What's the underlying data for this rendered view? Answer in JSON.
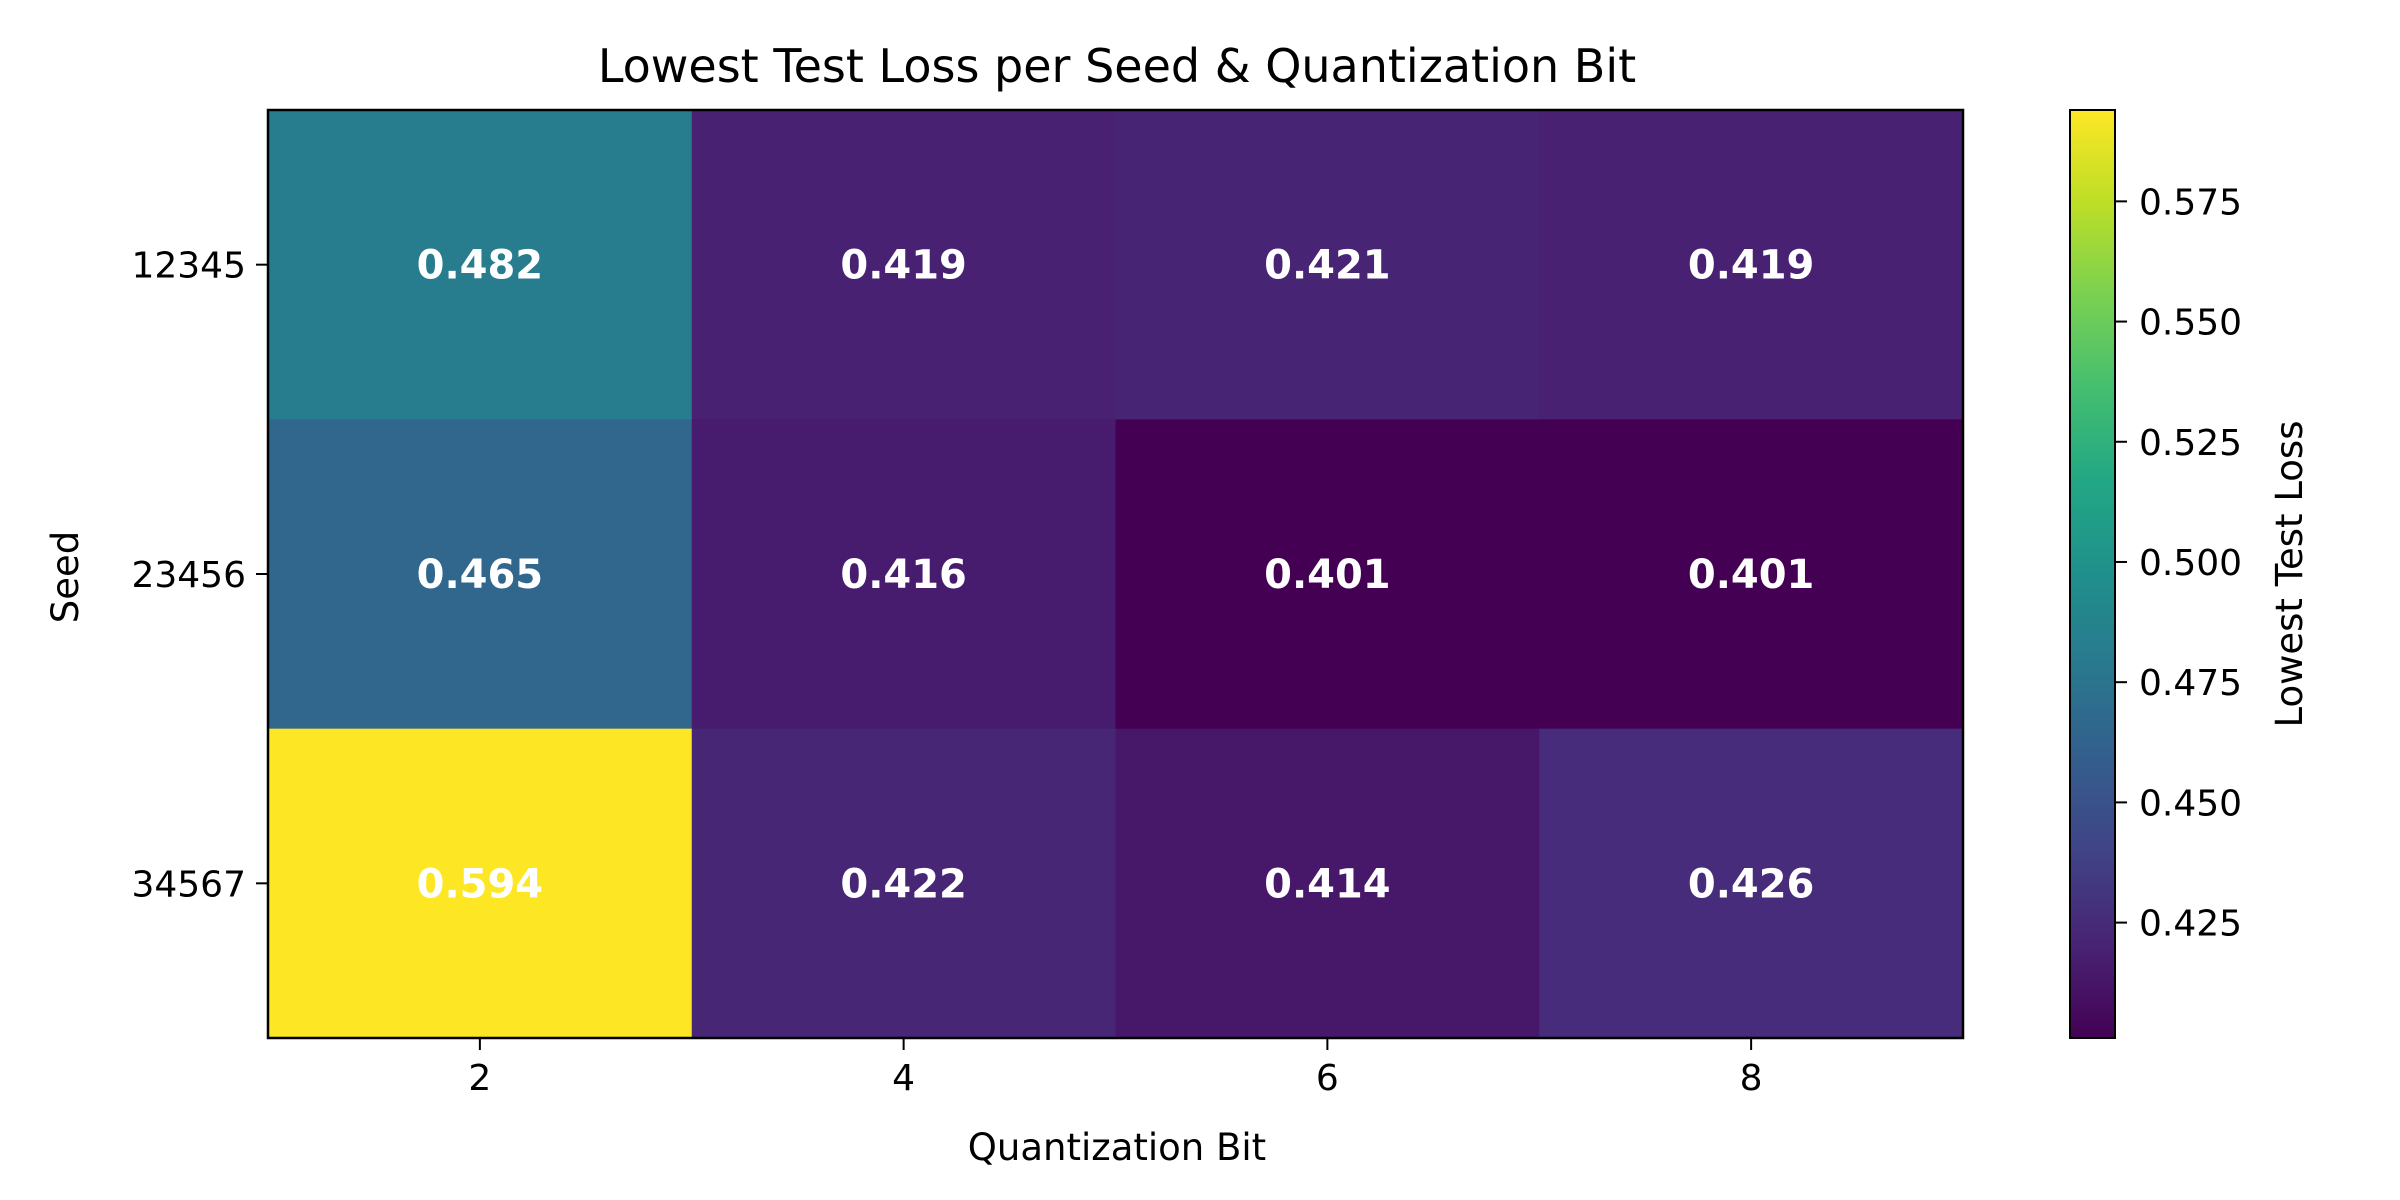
{
  "chart_data": {
    "type": "heatmap",
    "title": "Lowest Test Loss per Seed & Quantization Bit",
    "xlabel": "Quantization Bit",
    "ylabel": "Seed",
    "x_categories": [
      "2",
      "4",
      "6",
      "8"
    ],
    "y_categories": [
      "12345",
      "23456",
      "34567"
    ],
    "values": [
      [
        0.482,
        0.419,
        0.421,
        0.419
      ],
      [
        0.465,
        0.416,
        0.401,
        0.401
      ],
      [
        0.594,
        0.422,
        0.414,
        0.426
      ]
    ],
    "value_labels": [
      [
        "0.482",
        "0.419",
        "0.421",
        "0.419"
      ],
      [
        "0.465",
        "0.416",
        "0.401",
        "0.401"
      ],
      [
        "0.594",
        "0.422",
        "0.414",
        "0.426"
      ]
    ],
    "colormap": "viridis",
    "colorbar": {
      "label": "Lowest Test Loss",
      "range": [
        0.401,
        0.594
      ],
      "ticks": [
        "0.425",
        "0.450",
        "0.475",
        "0.500",
        "0.525",
        "0.550",
        "0.575"
      ]
    },
    "grid": false
  }
}
